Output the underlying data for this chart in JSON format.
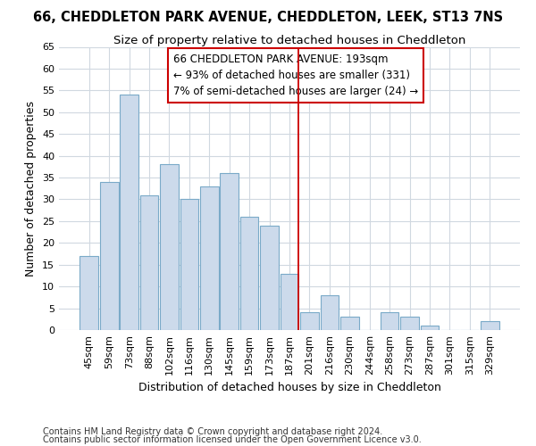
{
  "title": "66, CHEDDLETON PARK AVENUE, CHEDDLETON, LEEK, ST13 7NS",
  "subtitle": "Size of property relative to detached houses in Cheddleton",
  "xlabel": "Distribution of detached houses by size in Cheddleton",
  "ylabel": "Number of detached properties",
  "categories": [
    "45sqm",
    "59sqm",
    "73sqm",
    "88sqm",
    "102sqm",
    "116sqm",
    "130sqm",
    "145sqm",
    "159sqm",
    "173sqm",
    "187sqm",
    "201sqm",
    "216sqm",
    "230sqm",
    "244sqm",
    "258sqm",
    "273sqm",
    "287sqm",
    "301sqm",
    "315sqm",
    "329sqm"
  ],
  "values": [
    17,
    34,
    54,
    31,
    38,
    30,
    33,
    36,
    26,
    24,
    13,
    4,
    8,
    3,
    0,
    4,
    3,
    1,
    0,
    0,
    2
  ],
  "bar_color": "#ccdaeb",
  "bar_edge_color": "#7aaac8",
  "highlight_index": 10,
  "highlight_line_color": "#cc0000",
  "annotation_line1": "66 CHEDDLETON PARK AVENUE: 193sqm",
  "annotation_line2": "← 93% of detached houses are smaller (331)",
  "annotation_line3": "7% of semi-detached houses are larger (24) →",
  "annotation_box_color": "white",
  "annotation_box_edge_color": "#cc0000",
  "ylim": [
    0,
    65
  ],
  "yticks": [
    0,
    5,
    10,
    15,
    20,
    25,
    30,
    35,
    40,
    45,
    50,
    55,
    60,
    65
  ],
  "footer1": "Contains HM Land Registry data © Crown copyright and database right 2024.",
  "footer2": "Contains public sector information licensed under the Open Government Licence v3.0.",
  "bg_color": "#ffffff",
  "plot_bg_color": "#ffffff",
  "grid_color": "#d0d8e0",
  "title_fontsize": 10.5,
  "subtitle_fontsize": 9.5,
  "axis_label_fontsize": 9,
  "tick_fontsize": 8,
  "annotation_fontsize": 8.5,
  "footer_fontsize": 7
}
